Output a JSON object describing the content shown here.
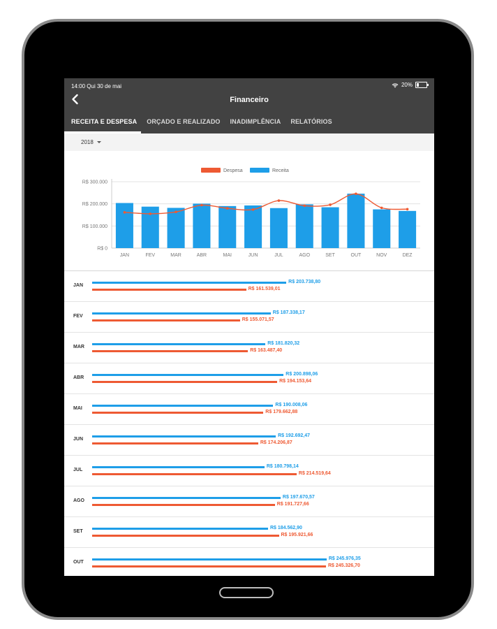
{
  "status": {
    "time": "14:00",
    "date": "Qui 30 de mai",
    "battery": "20%"
  },
  "header": {
    "title": "Financeiro"
  },
  "tabs": [
    {
      "label": "RECEITA E DESPESA",
      "active": true
    },
    {
      "label": "ORÇADO E REALIZADO",
      "active": false
    },
    {
      "label": "INADIMPLÊNCIA",
      "active": false
    },
    {
      "label": "RELATÓRIOS",
      "active": false
    }
  ],
  "year_selector": {
    "value": "2018"
  },
  "colors": {
    "receita": "#1e9ee8",
    "despesa": "#ee5a33",
    "topbar": "#424242"
  },
  "chart_data": {
    "type": "bar",
    "categories": [
      "JAN",
      "FEV",
      "MAR",
      "ABR",
      "MAI",
      "JUN",
      "JUL",
      "AGO",
      "SET",
      "OUT",
      "NOV",
      "DEZ"
    ],
    "series": [
      {
        "name": "Receita",
        "type": "bar",
        "color": "#1e9ee8",
        "values": [
          203738.8,
          187338.17,
          181820.32,
          200898.06,
          190008.06,
          192692.47,
          180798.14,
          197670.57,
          184562.9,
          245976.35,
          175000,
          168000
        ]
      },
      {
        "name": "Despesa",
        "type": "line",
        "color": "#ee5a33",
        "values": [
          161539.01,
          155071.57,
          163487.4,
          194153.64,
          179662.88,
          174206.87,
          214519.64,
          191727.66,
          195921.66,
          245326.7,
          182000,
          176000
        ]
      }
    ],
    "yticks": [
      "R$ 300.000",
      "R$ 200.000",
      "R$ 100.000",
      "R$ 0"
    ],
    "ylim": [
      0,
      300000
    ],
    "legend": [
      "Despesa",
      "Receita"
    ],
    "legend_position": "top-center"
  },
  "monthly_list": [
    {
      "month": "JAN",
      "receita": "R$ 203.738,80",
      "despesa": "R$ 161.539,01"
    },
    {
      "month": "FEV",
      "receita": "R$ 187.338,17",
      "despesa": "R$ 155.071,57"
    },
    {
      "month": "MAR",
      "receita": "R$ 181.820,32",
      "despesa": "R$ 163.487,40"
    },
    {
      "month": "ABR",
      "receita": "R$ 200.898,06",
      "despesa": "R$ 194.153,64"
    },
    {
      "month": "MAI",
      "receita": "R$ 190.008,06",
      "despesa": "R$ 179.662,88"
    },
    {
      "month": "JUN",
      "receita": "R$ 192.692,47",
      "despesa": "R$ 174.206,87"
    },
    {
      "month": "JUL",
      "receita": "R$ 180.798,14",
      "despesa": "R$ 214.519,64"
    },
    {
      "month": "AGO",
      "receita": "R$ 197.670,57",
      "despesa": "R$ 191.727,66"
    },
    {
      "month": "SET",
      "receita": "R$ 184.562,90",
      "despesa": "R$ 195.921,66"
    },
    {
      "month": "OUT",
      "receita": "R$ 245.976,35",
      "despesa": "R$ 245.326,70"
    }
  ]
}
